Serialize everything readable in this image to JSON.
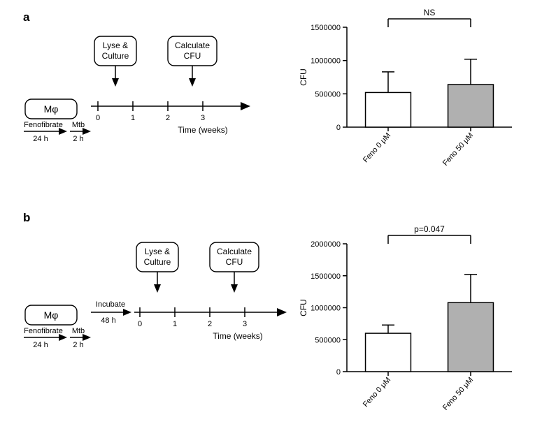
{
  "panel_a": {
    "label": "a",
    "diagram": {
      "mphi_label": "Mφ",
      "lyse_label": "Lyse &\nCulture",
      "cfu_label": "Calculate\nCFU",
      "feno_label": "Fenofibrate",
      "feno_time": "24 h",
      "mtb_label": "Mtb",
      "mtb_time": "2 h",
      "xaxis_label": "Time (weeks)",
      "xticks": [
        "0",
        "1",
        "2",
        "3"
      ]
    },
    "chart": {
      "type": "bar",
      "ylabel": "CFU",
      "ylim": [
        0,
        1500000
      ],
      "yticks": [
        0,
        500000,
        1000000,
        1500000
      ],
      "categories": [
        "Feno 0 μM",
        "Feno 50 μM"
      ],
      "values": [
        520000,
        640000
      ],
      "errors": [
        310000,
        380000
      ],
      "bar_colors": [
        "#ffffff",
        "#b0b0b0"
      ],
      "bar_width": 0.55,
      "background_color": "#ffffff",
      "axis_color": "#000000",
      "label_fontsize": 12,
      "tick_fontsize": 11,
      "significance": "NS"
    }
  },
  "panel_b": {
    "label": "b",
    "diagram": {
      "mphi_label": "Mφ",
      "lyse_label": "Lyse &\nCulture",
      "cfu_label": "Calculate\nCFU",
      "feno_label": "Fenofibrate",
      "feno_time": "24 h",
      "mtb_label": "Mtb",
      "mtb_time": "2 h",
      "incubate_label": "Incubate",
      "incubate_time": "48 h",
      "xaxis_label": "Time (weeks)",
      "xticks": [
        "0",
        "1",
        "2",
        "3"
      ]
    },
    "chart": {
      "type": "bar",
      "ylabel": "CFU",
      "ylim": [
        0,
        2000000
      ],
      "yticks": [
        0,
        500000,
        1000000,
        1500000,
        2000000
      ],
      "categories": [
        "Feno 0 μM",
        "Feno 50 μM"
      ],
      "values": [
        600000,
        1080000
      ],
      "errors": [
        130000,
        440000
      ],
      "bar_colors": [
        "#ffffff",
        "#b0b0b0"
      ],
      "bar_width": 0.55,
      "background_color": "#ffffff",
      "axis_color": "#000000",
      "label_fontsize": 12,
      "tick_fontsize": 11,
      "significance": "p=0.047"
    }
  }
}
